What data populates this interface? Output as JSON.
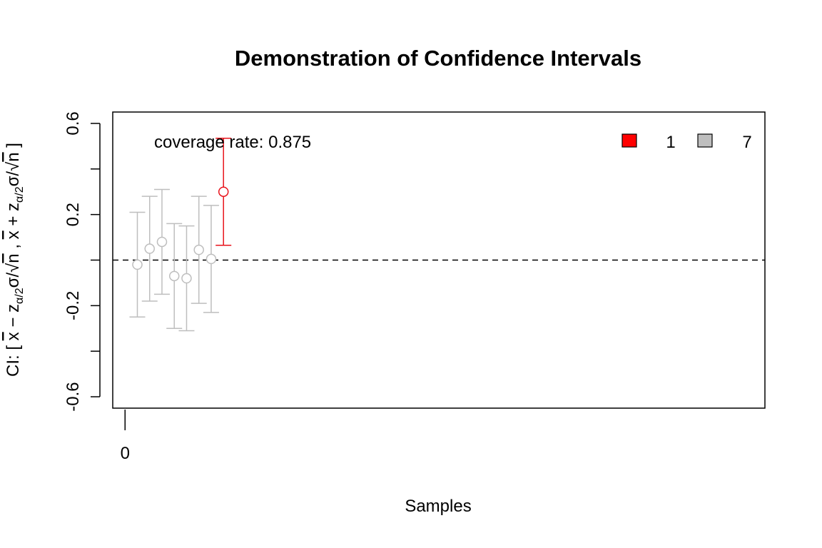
{
  "chart_data": {
    "type": "errorbar",
    "title": "Demonstration of Confidence Intervals",
    "xlabel": "Samples",
    "ylabel": "CI: [ x̄ − z_{α/2}σ/√n ,  x̄ + z_{α/2}σ/√n ]",
    "ylabel_parts": {
      "prefix": "CI: [ ",
      "xbar": "x",
      "minus": " − ",
      "z": "z",
      "sub": "α/2",
      "sigma": "σ/",
      "sqrt": "√",
      "n": "n",
      "sep": " ,  ",
      "plus": " + ",
      "suffix": " ]"
    },
    "xlim": [
      -1,
      52
    ],
    "ylim": [
      -0.65,
      0.65
    ],
    "x_ticks": [
      0
    ],
    "x_tick_labels": [
      "0"
    ],
    "y_ticks": [
      -0.6,
      -0.4,
      -0.2,
      0,
      0.2,
      0.4,
      0.6
    ],
    "y_tick_labels": [
      "-0.6",
      "",
      "-0.2",
      "",
      "0.2",
      "",
      "0.6"
    ],
    "reference_line": 0,
    "annotation": "coverage rate: 0.875",
    "samples": [
      {
        "x": 1,
        "mean": -0.02,
        "lower": -0.25,
        "upper": 0.21,
        "covers": true
      },
      {
        "x": 2,
        "mean": 0.05,
        "lower": -0.18,
        "upper": 0.28,
        "covers": true
      },
      {
        "x": 3,
        "mean": 0.08,
        "lower": -0.15,
        "upper": 0.31,
        "covers": true
      },
      {
        "x": 4,
        "mean": -0.07,
        "lower": -0.3,
        "upper": 0.16,
        "covers": true
      },
      {
        "x": 5,
        "mean": -0.08,
        "lower": -0.31,
        "upper": 0.15,
        "covers": true
      },
      {
        "x": 6,
        "mean": 0.045,
        "lower": -0.19,
        "upper": 0.28,
        "covers": true
      },
      {
        "x": 7,
        "mean": 0.005,
        "lower": -0.23,
        "upper": 0.24,
        "covers": true
      },
      {
        "x": 8,
        "mean": 0.3,
        "lower": 0.065,
        "upper": 0.535,
        "covers": false
      }
    ],
    "legend": {
      "position": "top-right",
      "entries": [
        {
          "label": "1",
          "color": "#ff0000"
        },
        {
          "label": "7",
          "color": "#bebebe"
        }
      ]
    },
    "colors": {
      "covers": "#bebebe",
      "misses": "#e8131b",
      "axis": "#000000"
    }
  }
}
